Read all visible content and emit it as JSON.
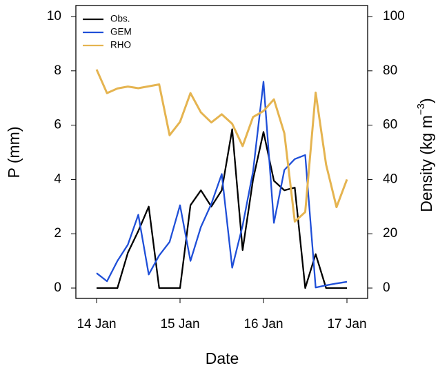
{
  "chart_data": {
    "type": "line",
    "xlabel": "Date",
    "ylabel": "P (mm)",
    "y2label": [
      "Density (kg m",
      "−3",
      ")"
    ],
    "categories": [
      "14 Jan",
      null,
      null,
      null,
      null,
      null,
      null,
      null,
      "15 Jan",
      null,
      null,
      null,
      null,
      null,
      null,
      null,
      "16 Jan",
      null,
      null,
      null,
      null,
      null,
      null,
      null,
      "17 Jan"
    ],
    "series": [
      {
        "name": "Obs.",
        "color": "#000000",
        "values": [
          0,
          0,
          0,
          1.3,
          2.1,
          3.0,
          0,
          0,
          0,
          3.05,
          3.6,
          3.0,
          3.6,
          5.85,
          1.4,
          4.0,
          5.75,
          3.95,
          3.6,
          3.7,
          0,
          1.25,
          0,
          0,
          0
        ]
      },
      {
        "name": "GEM",
        "color": "#1f4fd8",
        "values": [
          0.55,
          0.25,
          1.0,
          1.6,
          2.7,
          0.5,
          1.2,
          1.7,
          3.05,
          1.0,
          2.25,
          3.1,
          4.2,
          0.75,
          2.3,
          4.3,
          7.6,
          2.4,
          4.35,
          4.75,
          4.9,
          0.02,
          0.1,
          0.17,
          0.23
        ]
      },
      {
        "name": "RHO",
        "color": "#e5b450",
        "axis": "y2",
        "values": [
          80.5,
          71.8,
          73.5,
          74.2,
          73.6,
          74.3,
          75.0,
          56.3,
          61.2,
          71.8,
          64.7,
          61.0,
          64.0,
          60.5,
          52.3,
          63.0,
          65.2,
          69.5,
          57.0,
          24.5,
          28.0,
          72.0,
          45.5,
          29.8,
          40.0
        ]
      }
    ],
    "ylim": [
      0,
      10
    ],
    "yticks": [
      0,
      2,
      4,
      6,
      8,
      10
    ],
    "y2lim": [
      0,
      100
    ],
    "y2ticks": [
      0,
      20,
      40,
      60,
      80,
      100
    ],
    "legend": "top-left",
    "grid": false
  }
}
